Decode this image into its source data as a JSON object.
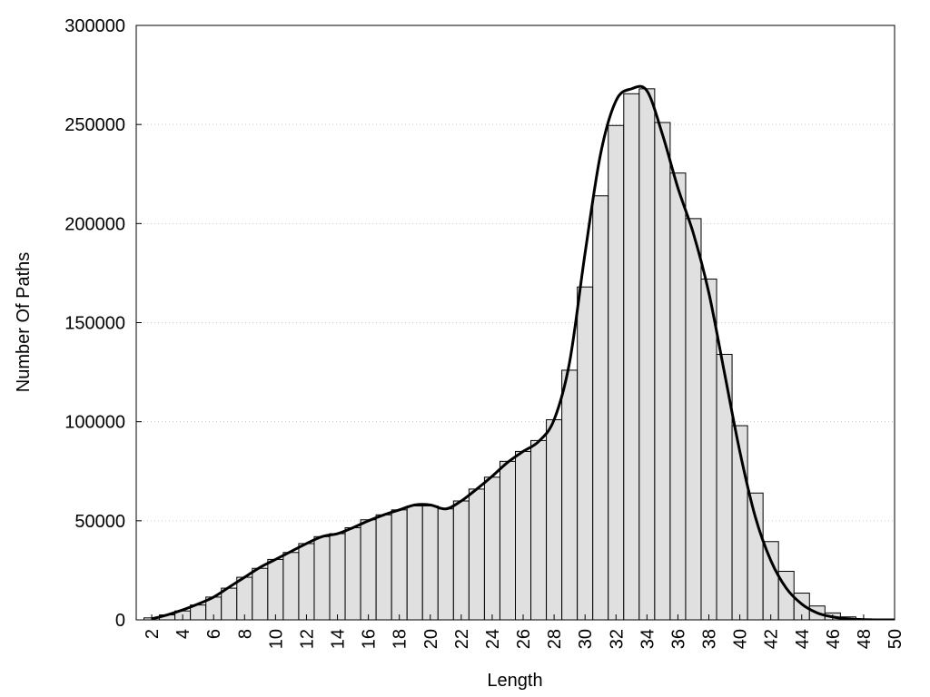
{
  "chart_data": {
    "type": "bar",
    "x_label": "Length",
    "y_label": "Number Of Paths",
    "x": [
      2,
      3,
      4,
      5,
      6,
      7,
      8,
      9,
      10,
      11,
      12,
      13,
      14,
      15,
      16,
      17,
      18,
      19,
      20,
      21,
      22,
      23,
      24,
      25,
      26,
      27,
      28,
      29,
      30,
      31,
      32,
      33,
      34,
      35,
      36,
      37,
      38,
      39,
      40,
      41,
      42,
      43,
      44,
      45,
      46,
      47,
      48,
      49,
      50
    ],
    "values": [
      1000,
      2500,
      4500,
      7500,
      11500,
      16000,
      21500,
      26000,
      30500,
      34000,
      38500,
      42000,
      43500,
      46500,
      50500,
      53000,
      55500,
      57500,
      57500,
      56000,
      60000,
      66000,
      72000,
      80000,
      85000,
      90500,
      101000,
      126000,
      168000,
      214000,
      249500,
      265500,
      268000,
      251000,
      225500,
      202500,
      172000,
      134000,
      98000,
      64000,
      39500,
      24500,
      13500,
      7000,
      3500,
      1500,
      500,
      200,
      100
    ],
    "color": "#e0e0e0",
    "curve_values": [
      500,
      2500,
      5000,
      8000,
      11500,
      16500,
      21500,
      26500,
      30500,
      34500,
      38500,
      42000,
      43500,
      46500,
      50000,
      53000,
      55500,
      58000,
      58000,
      56000,
      60000,
      66000,
      72500,
      79500,
      85000,
      90000,
      101000,
      130000,
      185000,
      235000,
      262000,
      268000,
      267000,
      245000,
      218000,
      195000,
      165000,
      125000,
      85000,
      52000,
      30000,
      16000,
      8000,
      3500,
      1500,
      500,
      100,
      0,
      0
    ],
    "curve_color": "#000000",
    "xlim": [
      1,
      50
    ],
    "xticks": [
      2,
      4,
      6,
      8,
      10,
      12,
      14,
      16,
      18,
      20,
      22,
      24,
      26,
      28,
      30,
      32,
      34,
      36,
      38,
      40,
      42,
      44,
      46,
      48,
      50
    ],
    "ylim": [
      0,
      300000
    ],
    "yticks": [
      0,
      50000,
      100000,
      150000,
      200000,
      250000,
      300000
    ],
    "grid": true
  }
}
